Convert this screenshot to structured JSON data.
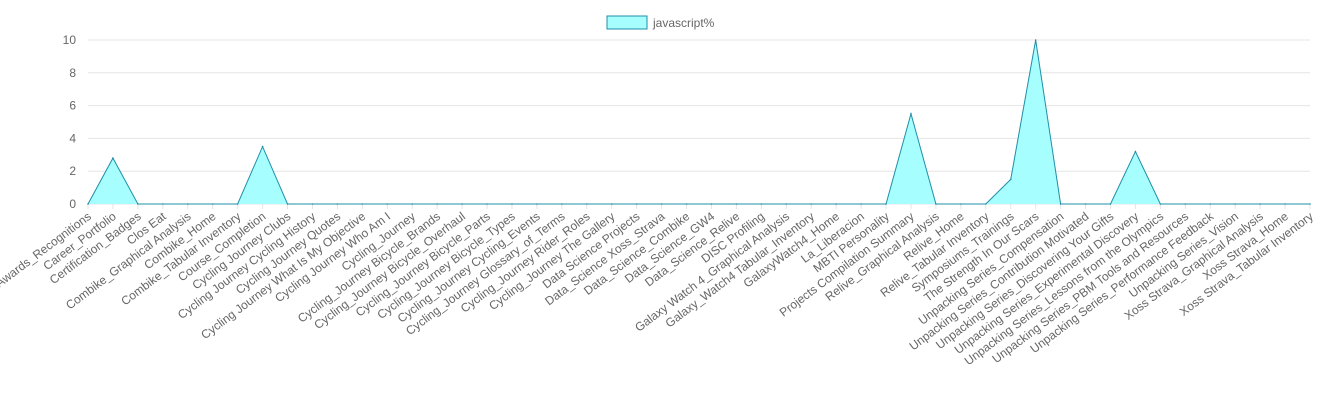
{
  "chart_data": {
    "type": "area",
    "title": "",
    "xlabel": "",
    "ylabel": "",
    "ylim": [
      0,
      10
    ],
    "yticks": [
      0,
      2,
      4,
      6,
      8,
      10
    ],
    "grid": true,
    "legend": "top",
    "categories": [
      "Awards_Recognitions",
      "Career_Portfolio",
      "Certification_Badges",
      "Clos Eat",
      "Combike_Graphical Analysis",
      "Combike_Home",
      "Combike_Tabular Inventory",
      "Course_Completion",
      "Cycling Journey Clubs",
      "Cycling Journey Cycling History",
      "Cycling Journey Quotes",
      "Cycling Journey What Is My Objective",
      "Cycling Journey Who Am I",
      "Cycling_Journey",
      "Cycling_Journey Bicycle_Brands",
      "Cycling_Journey Bicycle_Overhaul",
      "Cycling_Journey Bicycle_Parts",
      "Cycling_Journey Bicycle_Types",
      "Cycling_Journey Cycling_Events",
      "Cycling_Journey Glossary_of_Terms",
      "Cycling_Journey Rider_Roles",
      "Cycling_Journey The Gallery",
      "Data Science Projects",
      "Data_Science Xoss_Strava",
      "Data_Science_Combike",
      "Data_Science_GW4",
      "Data_Science_Relive",
      "DISC Profiling",
      "Galaxy Watch 4_Graphical Analysis",
      "Galaxy_Watch4 Tabular_Inventory",
      "GalaxyWatch4_Home",
      "La_Liberacion",
      "MBTI Personality",
      "Projects Compilation Summary",
      "Relive_Graphical Analysis",
      "Relive_Home",
      "Relive_Tabular Inventory",
      "Symposiums_Trainings",
      "The Strength In Our Scars",
      "Unpacking Series_Compensation",
      "Unpacking Series_Contribution Motivated",
      "Unpacking Series_Discovering Your Gifts",
      "Unpacking Series_Experimental Discovery",
      "Unpacking Series_Lessons from the Olympics",
      "Unpacking Series_PBM Tools and Resources",
      "Unpacking Series_Performance Feedback",
      "Unpacking Series_Vision",
      "Xoss Strava_Graphical Analysis",
      "Xoss Strava_Home",
      "Xoss Strava_Tabular Inventory"
    ],
    "series": [
      {
        "name": "javascript%",
        "values": [
          0,
          2.8,
          0,
          0,
          0,
          0,
          0,
          3.5,
          0,
          0,
          0,
          0,
          0,
          0,
          0,
          0,
          0,
          0,
          0,
          0,
          0,
          0,
          0,
          0,
          0,
          0,
          0,
          0,
          0,
          0,
          0,
          0,
          0,
          5.5,
          0,
          0,
          0,
          1.5,
          10,
          0,
          0,
          0,
          3.2,
          0,
          0,
          0,
          0,
          0,
          0,
          0
        ],
        "fill": "#a6fefe",
        "stroke": "#1f8fa8"
      }
    ]
  }
}
